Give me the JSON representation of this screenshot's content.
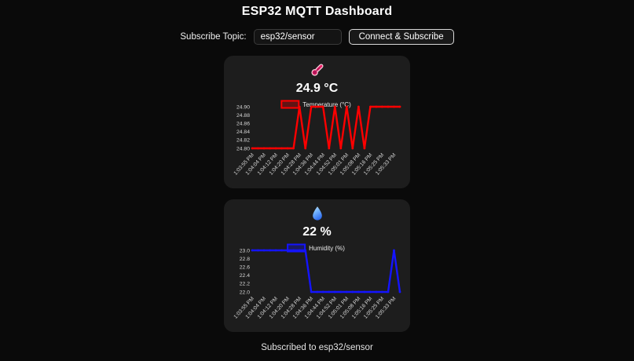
{
  "header": {
    "title": "ESP32 MQTT Dashboard"
  },
  "controls": {
    "topic_label": "Subscribe Topic:",
    "topic_value": "esp32/sensor",
    "connect_button_label": "Connect & Subscribe"
  },
  "cards": [
    {
      "name": "temperature",
      "icon": "thermometer-icon",
      "reading": "24.9 °C"
    },
    {
      "name": "humidity",
      "icon": "droplet-icon",
      "reading": "22 %"
    }
  ],
  "status": {
    "text": "Subscribed to esp32/sensor"
  },
  "colors": {
    "page_bg": "#0a0a0a",
    "card_bg": "#1d1d1d",
    "temperature_line": "#ff0000",
    "humidity_line": "#1414ff",
    "tick_text": "#d6d6d6",
    "legend_text": "#eaeaea"
  },
  "chart_data": [
    {
      "type": "line",
      "name": "temperature",
      "legend": "Temperature (°C)",
      "color": "#ff0000",
      "ylabel": "",
      "xlabel": "",
      "grid": false,
      "legend_position": "top",
      "ylim": [
        24.8,
        24.9
      ],
      "yticks": [
        "24.90",
        "24.88",
        "24.86",
        "24.84",
        "24.82",
        "24.80"
      ],
      "categories": [
        "1:03:55 PM",
        "1:04:04 PM",
        "1:04:12 PM",
        "1:04:20 PM",
        "1:04:28 PM",
        "1:04:36 PM",
        "1:04:44 PM",
        "1:04:52 PM",
        "1:05:01 PM",
        "1:05:08 PM",
        "1:05:16 PM",
        "1:05:25 PM",
        "1:05:33 PM"
      ],
      "points_per_label": 2,
      "values": [
        24.8,
        24.8,
        24.8,
        24.8,
        24.8,
        24.8,
        24.8,
        24.8,
        24.9,
        24.8,
        24.9,
        24.9,
        24.9,
        24.8,
        24.9,
        24.8,
        24.9,
        24.8,
        24.9,
        24.8,
        24.9,
        24.9,
        24.9,
        24.9,
        24.9,
        24.9
      ]
    },
    {
      "type": "line",
      "name": "humidity",
      "legend": "Humidity (%)",
      "color": "#1414ff",
      "ylabel": "",
      "xlabel": "",
      "grid": false,
      "legend_position": "top",
      "ylim": [
        22.0,
        23.0
      ],
      "yticks": [
        "23.0",
        "22.8",
        "22.6",
        "22.4",
        "22.2",
        "22.0"
      ],
      "categories": [
        "1:03:55 PM",
        "1:04:04 PM",
        "1:04:12 PM",
        "1:04:20 PM",
        "1:04:28 PM",
        "1:04:36 PM",
        "1:04:44 PM",
        "1:04:52 PM",
        "1:05:01 PM",
        "1:05:08 PM",
        "1:05:16 PM",
        "1:05:25 PM",
        "1:05:33 PM"
      ],
      "points_per_label": 2,
      "values": [
        23,
        23,
        23,
        23,
        23,
        23,
        23,
        23,
        23,
        23,
        22,
        22,
        22,
        22,
        22,
        22,
        22,
        22,
        22,
        22,
        22,
        22,
        22,
        22,
        23,
        22
      ]
    }
  ]
}
